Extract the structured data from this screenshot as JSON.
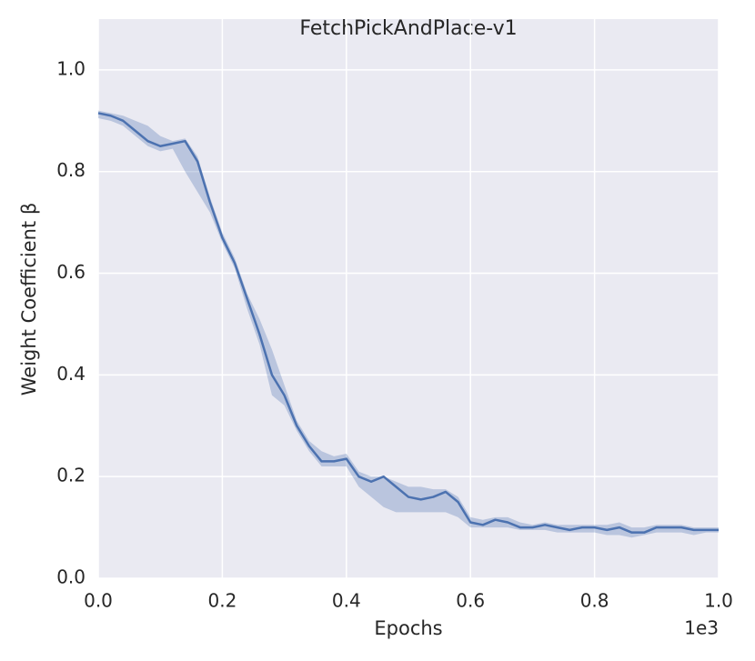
{
  "chart_data": {
    "type": "line",
    "title": "FetchPickAndPlace-v1",
    "xlabel": "Epochs",
    "ylabel": "Weight Coefficient β",
    "x_offset_label": "1e3",
    "x": [
      0,
      0.02,
      0.04,
      0.06,
      0.08,
      0.1,
      0.12,
      0.14,
      0.16,
      0.18,
      0.2,
      0.22,
      0.24,
      0.26,
      0.28,
      0.3,
      0.32,
      0.34,
      0.36,
      0.38,
      0.4,
      0.42,
      0.44,
      0.46,
      0.48,
      0.5,
      0.52,
      0.54,
      0.56,
      0.58,
      0.6,
      0.62,
      0.64,
      0.66,
      0.68,
      0.7,
      0.72,
      0.74,
      0.76,
      0.78,
      0.8,
      0.82,
      0.84,
      0.86,
      0.88,
      0.9,
      0.92,
      0.94,
      0.96,
      0.98,
      1.0
    ],
    "series": [
      {
        "color": "#4c72b0",
        "values": [
          0.915,
          0.91,
          0.9,
          0.88,
          0.86,
          0.85,
          0.855,
          0.86,
          0.82,
          0.74,
          0.67,
          0.62,
          0.55,
          0.48,
          0.4,
          0.36,
          0.3,
          0.26,
          0.23,
          0.23,
          0.235,
          0.2,
          0.19,
          0.2,
          0.18,
          0.16,
          0.155,
          0.16,
          0.17,
          0.15,
          0.11,
          0.105,
          0.115,
          0.11,
          0.1,
          0.1,
          0.105,
          0.1,
          0.095,
          0.1,
          0.1,
          0.095,
          0.1,
          0.09,
          0.09,
          0.1,
          0.1,
          0.1,
          0.095,
          0.095,
          0.095
        ],
        "lower": [
          0.905,
          0.9,
          0.89,
          0.87,
          0.85,
          0.84,
          0.845,
          0.8,
          0.76,
          0.72,
          0.66,
          0.61,
          0.53,
          0.46,
          0.36,
          0.34,
          0.29,
          0.25,
          0.22,
          0.22,
          0.22,
          0.18,
          0.16,
          0.14,
          0.13,
          0.13,
          0.13,
          0.13,
          0.13,
          0.12,
          0.1,
          0.1,
          0.1,
          0.1,
          0.095,
          0.095,
          0.095,
          0.09,
          0.09,
          0.09,
          0.09,
          0.085,
          0.085,
          0.08,
          0.085,
          0.09,
          0.09,
          0.09,
          0.085,
          0.09,
          0.09
        ],
        "upper": [
          0.92,
          0.915,
          0.91,
          0.9,
          0.89,
          0.87,
          0.86,
          0.865,
          0.83,
          0.75,
          0.68,
          0.63,
          0.56,
          0.51,
          0.45,
          0.38,
          0.31,
          0.27,
          0.25,
          0.24,
          0.245,
          0.21,
          0.2,
          0.2,
          0.19,
          0.18,
          0.18,
          0.175,
          0.175,
          0.16,
          0.12,
          0.115,
          0.12,
          0.12,
          0.11,
          0.105,
          0.11,
          0.105,
          0.105,
          0.105,
          0.105,
          0.105,
          0.11,
          0.1,
          0.1,
          0.105,
          0.105,
          0.105,
          0.1,
          0.1,
          0.1
        ]
      }
    ],
    "xlim": [
      0,
      1
    ],
    "ylim": [
      0,
      1.1
    ],
    "xticks": [
      {
        "value": 0,
        "label": "0.0"
      },
      {
        "value": 0.2,
        "label": "0.2"
      },
      {
        "value": 0.4,
        "label": "0.4"
      },
      {
        "value": 0.6,
        "label": "0.6"
      },
      {
        "value": 0.8,
        "label": "0.8"
      },
      {
        "value": 1,
        "label": "1.0"
      }
    ],
    "yticks": [
      {
        "value": 0,
        "label": "0.0"
      },
      {
        "value": 0.2,
        "label": "0.2"
      },
      {
        "value": 0.4,
        "label": "0.4"
      },
      {
        "value": 0.6,
        "label": "0.6"
      },
      {
        "value": 0.8,
        "label": "0.8"
      },
      {
        "value": 1,
        "label": "1.0"
      }
    ],
    "grid": true,
    "background": "#eaeaf2"
  }
}
